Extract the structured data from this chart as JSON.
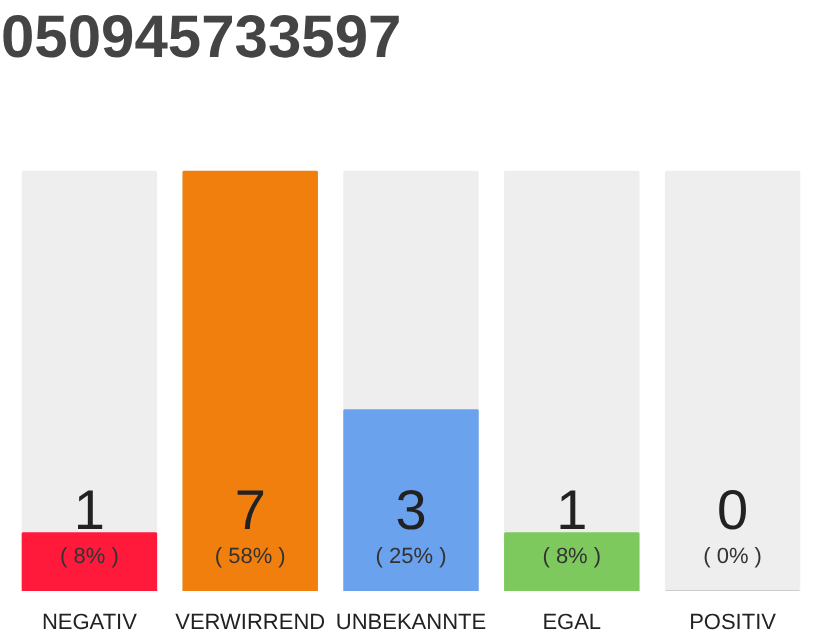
{
  "chart_data": {
    "type": "bar",
    "title": "050945733597",
    "categories": [
      "NEGATIV",
      "VERWIRREND",
      "UNBEKANNTE",
      "EGAL",
      "POSITIV"
    ],
    "values": [
      8,
      58,
      25,
      8,
      0
    ],
    "colors": [
      "#ff1a3c",
      "#f17f0e",
      "#6aa2ee",
      "#7dc95e",
      "#cccccc"
    ],
    "value_labels": [
      "( 8% )",
      "( 58% )",
      "( 25% )",
      "( 8% )",
      "( 0% )"
    ],
    "annotations": [
      "1",
      "7",
      "3",
      "1",
      "0"
    ],
    "grid": false
  }
}
